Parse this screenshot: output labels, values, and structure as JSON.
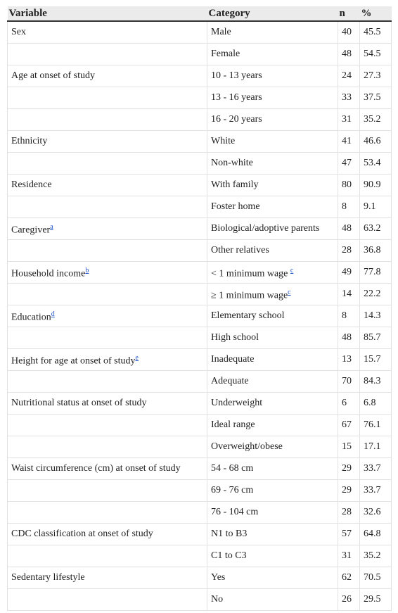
{
  "table": {
    "header": [
      "Variable",
      "Category",
      "n",
      "%"
    ],
    "rows": [
      {
        "variable": "Sex",
        "category": "Male",
        "n": 40,
        "pct": 45.5
      },
      {
        "category": "Female",
        "n": 48,
        "pct": 54.5
      },
      {
        "variable": "Age at onset of study",
        "category": "10 - 13 years",
        "n": 24,
        "pct": 27.3
      },
      {
        "category": "13 - 16 years",
        "n": 33,
        "pct": 37.5
      },
      {
        "category": "16 - 20 years",
        "n": 31,
        "pct": 35.2
      },
      {
        "variable": "Ethnicity",
        "category": "White",
        "n": 41,
        "pct": 46.6
      },
      {
        "category": "Non-white",
        "n": 47,
        "pct": 53.4
      },
      {
        "variable": "Residence",
        "category": "With family",
        "n": 80,
        "pct": 90.9
      },
      {
        "category": "Foster home",
        "n": 8,
        "pct": 9.1
      },
      {
        "variable": "Caregiver",
        "variable_note": "a",
        "category": "Biological/adoptive parents",
        "n": 48,
        "pct": 63.2
      },
      {
        "category": "Other relatives",
        "n": 28,
        "pct": 36.8
      },
      {
        "variable": "Household income",
        "variable_note": "b",
        "category": "< 1 minimum wage ",
        "category_note": "c",
        "n": 49,
        "pct": 77.8
      },
      {
        "category": "≥ 1 minimum wage",
        "category_note": "c",
        "n": 14,
        "pct": 22.2
      },
      {
        "variable": "Education",
        "variable_note": "d",
        "category": "Elementary school",
        "n": 8,
        "pct": 14.3
      },
      {
        "category": "High school",
        "n": 48,
        "pct": 85.7
      },
      {
        "variable": "Height for age at onset of study",
        "variable_note": "e",
        "category": "Inadequate",
        "n": 13,
        "pct": 15.7
      },
      {
        "category": "Adequate",
        "n": 70,
        "pct": 84.3
      },
      {
        "variable": "Nutritional status at onset of study",
        "category": "Underweight",
        "n": 6,
        "pct": 6.8
      },
      {
        "category": "Ideal range",
        "n": 67,
        "pct": 76.1
      },
      {
        "category": "Overweight/obese",
        "n": 15,
        "pct": 17.1
      },
      {
        "variable": "Waist circumference (cm) at onset of study",
        "category": "54 - 68 cm",
        "n": 29,
        "pct": 33.7
      },
      {
        "category": "69 - 76 cm",
        "n": 29,
        "pct": 33.7
      },
      {
        "category": "76 - 104 cm",
        "n": 28,
        "pct": 32.6
      },
      {
        "variable": "CDC classification at onset of study",
        "category": "N1 to B3",
        "n": 57,
        "pct": 64.8
      },
      {
        "category": "C1 to C3",
        "n": 31,
        "pct": 35.2
      },
      {
        "variable": "Sedentary lifestyle",
        "category": "Yes",
        "n": 62,
        "pct": 70.5
      },
      {
        "category": "No",
        "n": 26,
        "pct": 29.5
      }
    ]
  }
}
